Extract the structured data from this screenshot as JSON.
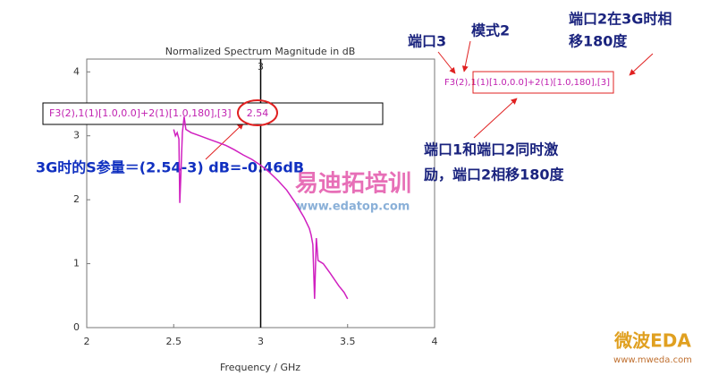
{
  "chart_data": {
    "type": "line",
    "title": "Normalized Spectrum Magnitude in dB",
    "x_label": "Frequency / GHz",
    "xlim": [
      2,
      4
    ],
    "xticks": [
      2,
      2.5,
      3,
      3.5,
      4
    ],
    "ylim": [
      0,
      4.2
    ],
    "yticks": [
      0,
      1,
      2,
      3,
      4
    ],
    "grid": false,
    "series": [
      {
        "name": "F3(2),1(1)[1.0,0.0]+2(1)[1.0,180],[3]",
        "color": "#d020c0",
        "x": [
          2.5,
          2.51,
          2.52,
          2.53,
          2.535,
          2.54,
          2.55,
          2.56,
          2.57,
          2.6,
          2.65,
          2.7,
          2.75,
          2.8,
          2.85,
          2.9,
          2.95,
          3.0,
          3.05,
          3.1,
          3.15,
          3.2,
          3.25,
          3.28,
          3.29,
          3.3,
          3.31,
          3.32,
          3.33,
          3.36,
          3.4,
          3.45,
          3.48,
          3.5
        ],
        "values": [
          3.1,
          3.0,
          3.05,
          2.95,
          1.95,
          2.3,
          3.05,
          3.3,
          3.1,
          3.05,
          3.0,
          2.95,
          2.9,
          2.85,
          2.78,
          2.7,
          2.63,
          2.54,
          2.43,
          2.3,
          2.15,
          1.95,
          1.72,
          1.55,
          1.45,
          1.3,
          0.45,
          1.4,
          1.05,
          1.0,
          0.85,
          0.65,
          0.55,
          0.45
        ]
      }
    ],
    "marker": {
      "x": 3,
      "label": "3",
      "value": 2.54
    },
    "annotations": {
      "port3": "端口3",
      "mode2": "模式2",
      "phase": [
        "端口2在3G时相",
        "移180度"
      ],
      "excite": [
        "端口1和端口2同时激",
        "励，端口2相移180度"
      ],
      "result": "3G时的S参量＝(2.54-3) dB=-0.46dB",
      "trace": "F3(2),1(1)[1.0,0.0]+2(1)[1.0,180],[3]"
    },
    "watermarks": [
      "易迪拓培训",
      "www.edatop.com",
      "微波EDA",
      "www.mweda.com"
    ]
  }
}
